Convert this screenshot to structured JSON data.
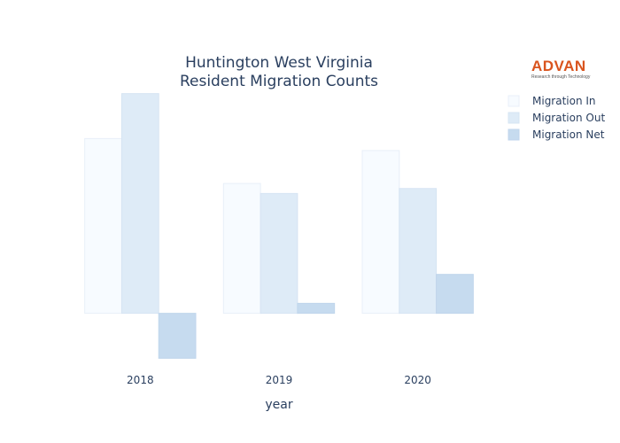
{
  "logo": {
    "brand": "ADVAN",
    "tagline": "Research through Technology",
    "color": "#d9541e"
  },
  "chart_data": {
    "type": "bar",
    "title_lines": [
      "Huntington West Virginia",
      "Resident Migration Counts"
    ],
    "xlabel": "year",
    "ylabel": "",
    "categories": [
      "2018",
      "2019",
      "2020"
    ],
    "series": [
      {
        "name": "Migration In",
        "values": [
          17500,
          13000,
          16300
        ],
        "color": "#f7fbff",
        "stroke": "#e8eff8"
      },
      {
        "name": "Migration Out",
        "values": [
          22000,
          12000,
          12500
        ],
        "color": "#deebf7",
        "stroke": "#d6e4f3"
      },
      {
        "name": "Migration Net",
        "values": [
          -4500,
          1000,
          3900
        ],
        "color": "#c6dbef",
        "stroke": "#c0d6ec"
      }
    ],
    "ylim": [
      -5000,
      22500
    ],
    "grid": false,
    "y_ticks_shown": false,
    "legend_position": "top-right"
  }
}
